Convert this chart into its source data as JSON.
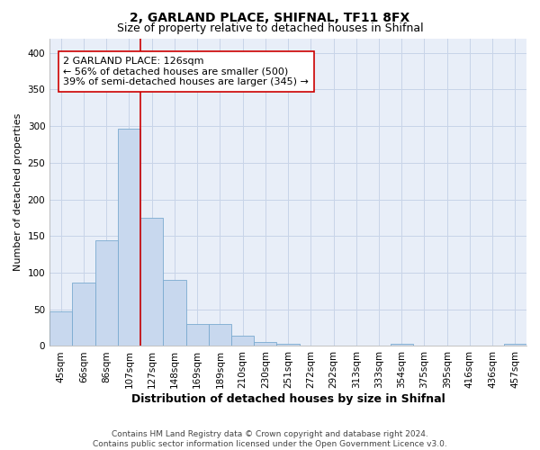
{
  "title1": "2, GARLAND PLACE, SHIFNAL, TF11 8FX",
  "title2": "Size of property relative to detached houses in Shifnal",
  "xlabel": "Distribution of detached houses by size in Shifnal",
  "ylabel": "Number of detached properties",
  "bar_labels": [
    "45sqm",
    "66sqm",
    "86sqm",
    "107sqm",
    "127sqm",
    "148sqm",
    "169sqm",
    "189sqm",
    "210sqm",
    "230sqm",
    "251sqm",
    "272sqm",
    "292sqm",
    "313sqm",
    "333sqm",
    "354sqm",
    "375sqm",
    "395sqm",
    "416sqm",
    "436sqm",
    "457sqm"
  ],
  "bar_values": [
    47,
    86,
    144,
    297,
    175,
    90,
    30,
    30,
    14,
    5,
    3,
    0,
    0,
    0,
    0,
    3,
    0,
    0,
    0,
    0,
    3
  ],
  "bar_color": "#c8d8ee",
  "bar_edgecolor": "#7aaad0",
  "vline_color": "#cc0000",
  "annotation_text": "2 GARLAND PLACE: 126sqm\n← 56% of detached houses are smaller (500)\n39% of semi-detached houses are larger (345) →",
  "box_color": "#cc0000",
  "ylim": [
    0,
    420
  ],
  "yticks": [
    0,
    50,
    100,
    150,
    200,
    250,
    300,
    350,
    400
  ],
  "grid_color": "#c8d4e8",
  "bg_color": "#e8eef8",
  "footer": "Contains HM Land Registry data © Crown copyright and database right 2024.\nContains public sector information licensed under the Open Government Licence v3.0.",
  "title1_fontsize": 10,
  "title2_fontsize": 9,
  "xlabel_fontsize": 9,
  "ylabel_fontsize": 8,
  "tick_fontsize": 7.5,
  "ann_fontsize": 8,
  "footer_fontsize": 6.5
}
